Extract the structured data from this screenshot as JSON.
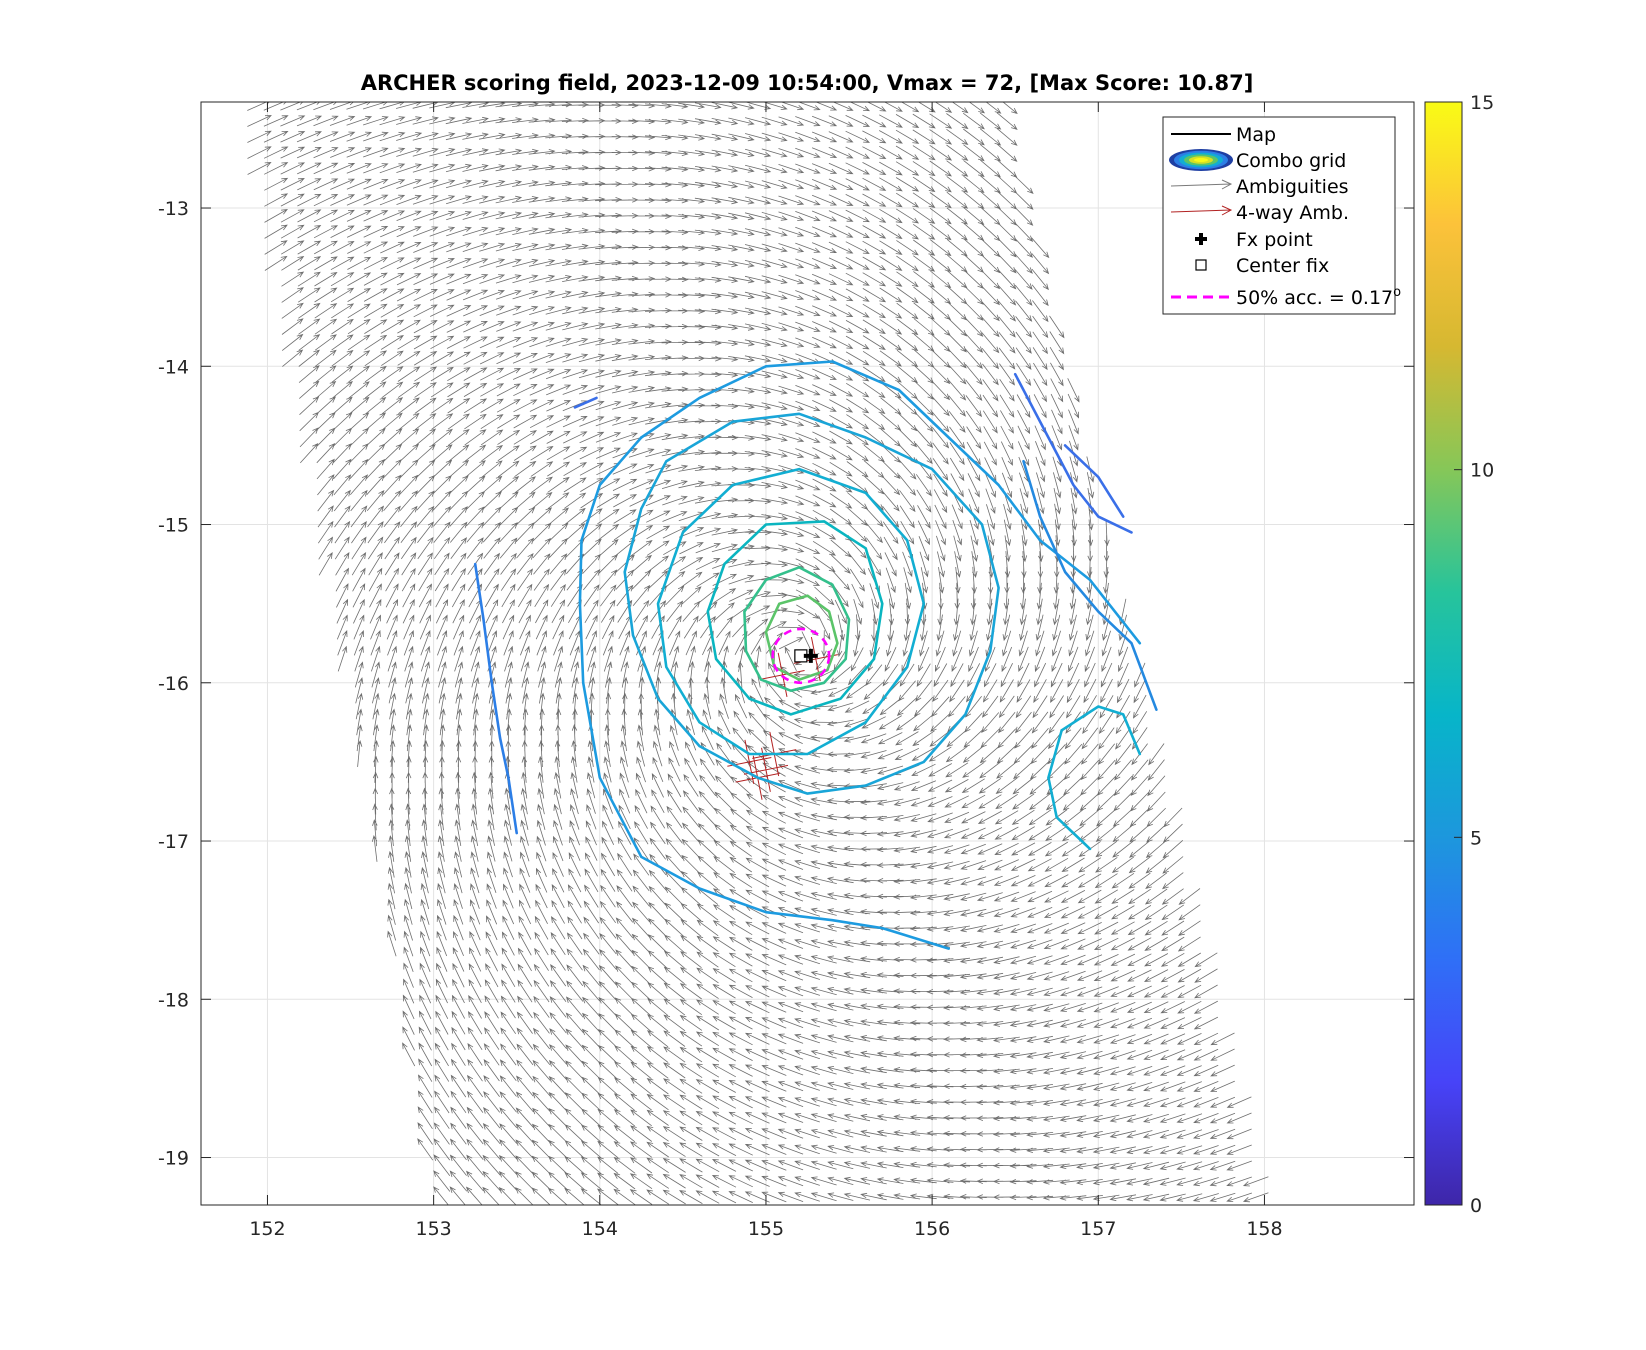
{
  "chart_data": {
    "type": "scatter",
    "title": "ARCHER scoring field, 2023-12-09 10:54:00, Vmax = 72, [Max Score: 10.87]",
    "xlabel": "",
    "ylabel": "",
    "xlim": [
      151.6,
      158.9
    ],
    "ylim": [
      -19.3,
      -12.33
    ],
    "x_ticks": [
      "152",
      "153",
      "154",
      "155",
      "156",
      "157",
      "158"
    ],
    "y_ticks": [
      "-13",
      "-14",
      "-15",
      "-16",
      "-17",
      "-18",
      "-19"
    ],
    "grid": true,
    "legend_position": "top-right",
    "legend": [
      {
        "label": "Map",
        "symbol": "line",
        "color": "#000000"
      },
      {
        "label": "Combo grid",
        "symbol": "contour-ellipse",
        "color": "#1f3fa3"
      },
      {
        "label": "Ambiguities",
        "symbol": "arrow",
        "color": "#7a7a7a"
      },
      {
        "label": "4-way Amb.",
        "symbol": "arrow",
        "color": "#b22222"
      },
      {
        "label": "Fx point",
        "symbol": "plus",
        "color": "#000000"
      },
      {
        "label": "Center fix",
        "symbol": "square",
        "color": "#000000"
      },
      {
        "label": "50% acc. = 0.17",
        "label_sup": "o",
        "symbol": "dashed",
        "color": "#ff00ff"
      }
    ],
    "colorbar": {
      "min": 0,
      "max": 15,
      "ticks": [
        "0",
        "5",
        "10",
        "15"
      ],
      "colormap": "parula",
      "colors": [
        "#3e26a8",
        "#4743f8",
        "#2f6ff7",
        "#1d97dd",
        "#07b5c9",
        "#27c49b",
        "#86c758",
        "#d6b831",
        "#fcc23a",
        "#f9fb15"
      ]
    },
    "swath": {
      "polygon": [
        [
          151.88,
          -12.33
        ],
        [
          156.45,
          -12.33
        ],
        [
          158.0,
          -19.3
        ],
        [
          153.0,
          -19.3
        ]
      ],
      "arrow_color": "#555555"
    },
    "vortex_center": [
      155.2,
      -15.8
    ],
    "center_fix": [
      155.21,
      -15.83
    ],
    "fx_point": [
      155.27,
      -15.83
    ],
    "accuracy_radius_deg": 0.17,
    "contours": [
      {
        "level": 5.0,
        "color": "#2c7ee6",
        "points": [
          [
            153.25,
            -15.25
          ],
          [
            153.3,
            -15.6
          ],
          [
            153.35,
            -16.0
          ],
          [
            153.4,
            -16.35
          ],
          [
            153.45,
            -16.6
          ],
          [
            153.5,
            -16.95
          ]
        ]
      },
      {
        "level": 4.6,
        "color": "#3a6fe8",
        "points": [
          [
            153.85,
            -14.26
          ],
          [
            153.98,
            -14.2
          ]
        ]
      },
      {
        "level": 5.8,
        "color": "#1d9be0",
        "points": [
          [
            154.25,
            -14.45
          ],
          [
            154.6,
            -14.2
          ],
          [
            155.0,
            -14.0
          ],
          [
            155.4,
            -13.97
          ],
          [
            155.8,
            -14.15
          ],
          [
            156.1,
            -14.45
          ],
          [
            156.4,
            -14.75
          ],
          [
            156.65,
            -15.1
          ],
          [
            156.95,
            -15.35
          ],
          [
            157.25,
            -15.75
          ]
        ]
      },
      {
        "level": 5.8,
        "color": "#1d9be0",
        "points": [
          [
            153.89,
            -15.1
          ],
          [
            153.88,
            -15.5
          ],
          [
            153.9,
            -16.0
          ],
          [
            154.0,
            -16.6
          ],
          [
            154.25,
            -17.1
          ],
          [
            154.6,
            -17.3
          ],
          [
            155.0,
            -17.45
          ],
          [
            155.4,
            -17.5
          ],
          [
            155.7,
            -17.55
          ],
          [
            156.1,
            -17.68
          ]
        ]
      },
      {
        "level": 5.8,
        "color": "#1d9be0",
        "points": [
          [
            153.89,
            -15.1
          ],
          [
            154.0,
            -14.75
          ],
          [
            154.25,
            -14.45
          ]
        ]
      },
      {
        "level": 4.6,
        "color": "#3a6fe8",
        "points": [
          [
            156.5,
            -14.05
          ],
          [
            156.7,
            -14.45
          ],
          [
            156.85,
            -14.75
          ],
          [
            157.0,
            -14.95
          ],
          [
            157.2,
            -15.05
          ]
        ]
      },
      {
        "level": 4.6,
        "color": "#3a6fe8",
        "points": [
          [
            156.8,
            -14.5
          ],
          [
            157.0,
            -14.7
          ],
          [
            157.15,
            -14.95
          ]
        ]
      },
      {
        "level": 5.4,
        "color": "#2489e0",
        "points": [
          [
            156.55,
            -14.6
          ],
          [
            156.65,
            -14.95
          ],
          [
            156.8,
            -15.3
          ],
          [
            157.0,
            -15.55
          ],
          [
            157.2,
            -15.75
          ],
          [
            157.35,
            -16.17
          ]
        ]
      },
      {
        "level": 6.2,
        "color": "#12aed2",
        "points": [
          [
            156.78,
            -16.3
          ],
          [
            157.0,
            -16.15
          ],
          [
            157.15,
            -16.2
          ],
          [
            157.25,
            -16.45
          ]
        ]
      },
      {
        "level": 6.2,
        "color": "#12aed2",
        "points": [
          [
            156.78,
            -16.3
          ],
          [
            156.7,
            -16.6
          ],
          [
            156.75,
            -16.85
          ],
          [
            156.9,
            -17.0
          ],
          [
            156.95,
            -17.05
          ]
        ]
      },
      {
        "level": 6.2,
        "color": "#12aed2",
        "points": [
          [
            154.5,
            -15.05
          ],
          [
            154.8,
            -14.75
          ],
          [
            155.2,
            -14.65
          ],
          [
            155.6,
            -14.8
          ],
          [
            155.85,
            -15.1
          ],
          [
            155.95,
            -15.5
          ],
          [
            155.85,
            -15.9
          ],
          [
            155.6,
            -16.25
          ],
          [
            155.25,
            -16.45
          ],
          [
            154.9,
            -16.45
          ],
          [
            154.6,
            -16.25
          ],
          [
            154.4,
            -15.9
          ],
          [
            154.35,
            -15.5
          ],
          [
            154.5,
            -15.05
          ]
        ]
      },
      {
        "level": 6.0,
        "color": "#19a5d8",
        "points": [
          [
            154.4,
            -14.6
          ],
          [
            154.8,
            -14.35
          ],
          [
            155.2,
            -14.3
          ],
          [
            155.6,
            -14.45
          ],
          [
            156.0,
            -14.65
          ],
          [
            156.3,
            -15.0
          ],
          [
            156.4,
            -15.4
          ],
          [
            156.35,
            -15.8
          ],
          [
            156.2,
            -16.2
          ],
          [
            155.95,
            -16.5
          ],
          [
            155.6,
            -16.65
          ],
          [
            155.25,
            -16.7
          ],
          [
            154.95,
            -16.6
          ],
          [
            154.6,
            -16.4
          ],
          [
            154.35,
            -16.1
          ],
          [
            154.2,
            -15.7
          ],
          [
            154.15,
            -15.3
          ],
          [
            154.25,
            -14.9
          ],
          [
            154.4,
            -14.6
          ]
        ]
      },
      {
        "level": 6.8,
        "color": "#0ab5c0",
        "points": [
          [
            154.75,
            -15.25
          ],
          [
            155.0,
            -15.0
          ],
          [
            155.35,
            -14.98
          ],
          [
            155.6,
            -15.15
          ],
          [
            155.7,
            -15.5
          ],
          [
            155.65,
            -15.85
          ],
          [
            155.45,
            -16.1
          ],
          [
            155.15,
            -16.2
          ],
          [
            154.9,
            -16.1
          ],
          [
            154.7,
            -15.85
          ],
          [
            154.65,
            -15.55
          ],
          [
            154.75,
            -15.25
          ]
        ]
      },
      {
        "level": 7.8,
        "color": "#34c08c",
        "points": [
          [
            154.87,
            -15.55
          ],
          [
            155.0,
            -15.35
          ],
          [
            155.2,
            -15.27
          ],
          [
            155.4,
            -15.38
          ],
          [
            155.5,
            -15.6
          ],
          [
            155.48,
            -15.85
          ],
          [
            155.35,
            -16.0
          ],
          [
            155.15,
            -16.05
          ],
          [
            154.97,
            -15.98
          ],
          [
            154.88,
            -15.8
          ],
          [
            154.87,
            -15.55
          ]
        ]
      },
      {
        "level": 9.0,
        "color": "#5bc469",
        "points": [
          [
            155.0,
            -15.68
          ],
          [
            155.08,
            -15.5
          ],
          [
            155.25,
            -15.45
          ],
          [
            155.38,
            -15.55
          ],
          [
            155.43,
            -15.75
          ],
          [
            155.37,
            -15.92
          ],
          [
            155.2,
            -15.98
          ],
          [
            155.05,
            -15.9
          ],
          [
            155.0,
            -15.68
          ]
        ]
      }
    ],
    "four_way_ambiguities": [
      [
        155.0,
        -16.55
      ],
      [
        154.9,
        -16.5
      ],
      [
        155.05,
        -16.45
      ],
      [
        154.95,
        -16.6
      ],
      [
        155.1,
        -15.95
      ],
      [
        155.3,
        -15.85
      ]
    ]
  }
}
